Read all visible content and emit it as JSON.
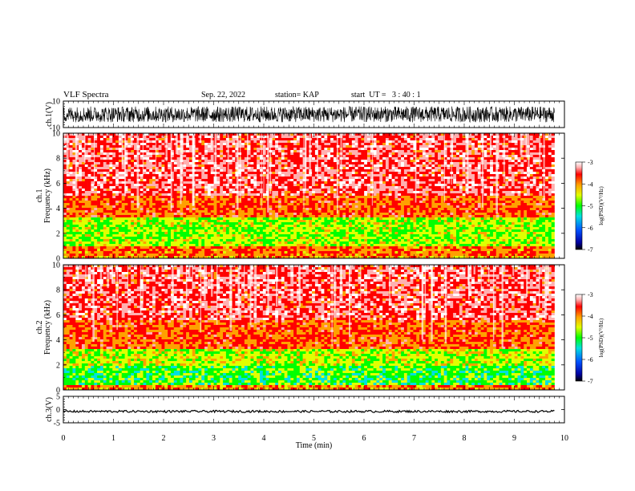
{
  "header": {
    "title": "VLF Spectra",
    "date": "Sep. 22, 2022",
    "station": "station= KAP",
    "start": "start  UT =   3 : 40 : 1"
  },
  "chart_data": [
    {
      "type": "line",
      "panel": "waveform-ch1",
      "ylabel": "ch.1(V)",
      "ylim": [
        -10,
        10
      ],
      "yticks": [
        10,
        -10
      ],
      "xlim": [
        0,
        10
      ],
      "series": [
        {
          "values_description_note": "",
          "x": [
            0,
            9.8
          ],
          "y_range": [
            -6,
            6
          ]
        }
      ]
    },
    {
      "type": "heatmap",
      "panel": "spectrogram-ch1",
      "ylabel": "ch.1\nFrequency (kHz)",
      "ylim": [
        0,
        10
      ],
      "yticks": [
        0,
        2,
        4,
        6,
        8,
        10
      ],
      "xlim": [
        0,
        10
      ],
      "data_end_min": 9.8,
      "colorbar": {
        "label": "log(PSD)(V²/Hz)",
        "range": [
          -7,
          -3
        ],
        "ticks": [
          -3,
          -4,
          -5,
          -6,
          -7
        ]
      },
      "bands": [
        {
          "freq_khz": [
            0,
            0.2
          ],
          "level": -4.3
        },
        {
          "freq_khz": [
            0.2,
            1.0
          ],
          "level": -4.1
        },
        {
          "freq_khz": [
            1.0,
            3.3
          ],
          "level": -4.9
        },
        {
          "freq_khz": [
            3.3,
            5.0
          ],
          "level": -4.0
        },
        {
          "freq_khz": [
            5.0,
            10.0
          ],
          "level": -3.6
        }
      ]
    },
    {
      "type": "heatmap",
      "panel": "spectrogram-ch2",
      "ylabel": "ch.2\nFrequency (kHz)",
      "ylim": [
        0,
        10
      ],
      "yticks": [
        0,
        2,
        4,
        6,
        8,
        10
      ],
      "xlim": [
        0,
        10
      ],
      "data_end_min": 9.8,
      "colorbar": {
        "label": "log(PSD)(V²/Hz)",
        "range": [
          -7,
          -3
        ],
        "ticks": [
          -3,
          -4,
          -5,
          -6,
          -7
        ]
      },
      "bands": [
        {
          "freq_khz": [
            0,
            0.3
          ],
          "level": -4.2
        },
        {
          "freq_khz": [
            0.3,
            2.0
          ],
          "level": -5.2
        },
        {
          "freq_khz": [
            2.0,
            3.3
          ],
          "level": -4.8
        },
        {
          "freq_khz": [
            3.3,
            5.5
          ],
          "level": -4.0
        },
        {
          "freq_khz": [
            5.5,
            10.0
          ],
          "level": -3.6
        }
      ]
    },
    {
      "type": "line",
      "panel": "waveform-ch3",
      "ylabel": "ch.3(V)",
      "ylim": [
        -5,
        5
      ],
      "yticks": [
        5,
        0,
        -5
      ],
      "xlim": [
        0,
        10
      ],
      "xlabel": "Time (min)",
      "xticks": [
        0,
        1,
        2,
        3,
        4,
        5,
        6,
        7,
        8,
        9,
        10
      ],
      "series": [
        {
          "x": [
            0,
            9.8
          ],
          "y_range": [
            -1.1,
            -0.3
          ]
        }
      ]
    }
  ]
}
